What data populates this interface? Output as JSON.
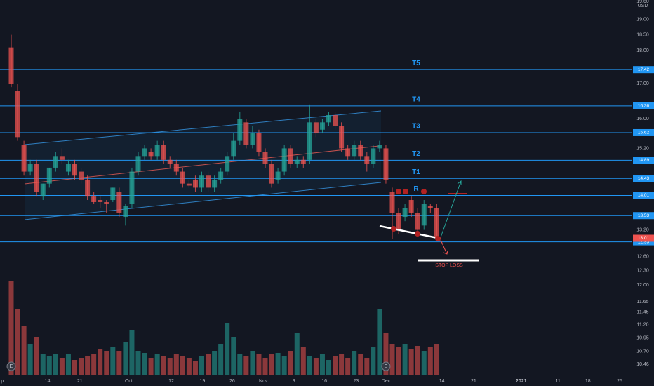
{
  "chart_data": {
    "type": "candlestick",
    "currency": "USD",
    "log_scale": true,
    "ylim": [
      10.26,
      19.65
    ],
    "yticks": [
      {
        "value": 19.6,
        "label": "19.60"
      },
      {
        "value": 19,
        "label": "19.00"
      },
      {
        "value": 18.5,
        "label": "18.50"
      },
      {
        "value": 18,
        "label": "18.00"
      },
      {
        "value": 17,
        "label": "17.00"
      },
      {
        "value": 16,
        "label": "16.00"
      },
      {
        "value": 15.2,
        "label": "15.20"
      },
      {
        "value": 13.2,
        "label": "13.20"
      },
      {
        "value": 12.6,
        "label": "12.60"
      },
      {
        "value": 12.3,
        "label": "12.30"
      },
      {
        "value": 12,
        "label": "12.00"
      },
      {
        "value": 11.65,
        "label": "11.65"
      },
      {
        "value": 11.45,
        "label": "11.45"
      },
      {
        "value": 11.2,
        "label": "11.20"
      },
      {
        "value": 10.95,
        "label": "10.95"
      },
      {
        "value": 10.7,
        "label": "10.70"
      },
      {
        "value": 10.46,
        "label": "10.46"
      }
    ],
    "xticks": [
      {
        "value": -1.4,
        "label": "p"
      },
      {
        "value": 5.7,
        "label": "14"
      },
      {
        "value": 10.8,
        "label": "21"
      },
      {
        "value": 18.5,
        "label": "Oct"
      },
      {
        "value": 25.2,
        "label": "12"
      },
      {
        "value": 30.1,
        "label": "19"
      },
      {
        "value": 34.8,
        "label": "26"
      },
      {
        "value": 39.7,
        "label": "Nov"
      },
      {
        "value": 44.5,
        "label": "9"
      },
      {
        "value": 49.3,
        "label": "16"
      },
      {
        "value": 54.3,
        "label": "23"
      },
      {
        "value": 59,
        "label": "Dec"
      },
      {
        "value": 67.8,
        "label": "14"
      },
      {
        "value": 72.8,
        "label": "21"
      },
      {
        "value": 80.3,
        "label": "2021"
      },
      {
        "value": 86.1,
        "label": "11"
      },
      {
        "value": 90.8,
        "label": "18"
      },
      {
        "value": 95.8,
        "label": "25"
      }
    ],
    "up_color": "#26a69a",
    "down_color": "#ef5350",
    "level_color": "#2196f3",
    "ohlc": [
      [
        18.1,
        18.5,
        16.9,
        17.0
      ],
      [
        16.8,
        17.0,
        15.4,
        15.5
      ],
      [
        15.3,
        15.4,
        14.5,
        14.6
      ],
      [
        14.6,
        14.9,
        14.5,
        14.8
      ],
      [
        14.8,
        14.9,
        14.0,
        14.1
      ],
      [
        14.0,
        14.3,
        13.9,
        14.3
      ],
      [
        14.3,
        14.7,
        14.2,
        14.7
      ],
      [
        14.7,
        15.1,
        14.6,
        15.0
      ],
      [
        15.0,
        15.2,
        14.8,
        14.9
      ],
      [
        14.6,
        14.9,
        14.5,
        14.8
      ],
      [
        14.8,
        14.9,
        14.4,
        14.5
      ],
      [
        14.6,
        14.7,
        14.3,
        14.4
      ],
      [
        14.4,
        14.5,
        13.9,
        14.0
      ],
      [
        14.0,
        14.1,
        13.8,
        13.85
      ],
      [
        13.9,
        14.0,
        13.7,
        13.85
      ],
      [
        13.85,
        13.9,
        13.6,
        13.8
      ],
      [
        13.9,
        14.2,
        13.85,
        14.2
      ],
      [
        14.1,
        14.2,
        13.5,
        13.6
      ],
      [
        13.5,
        13.8,
        13.3,
        13.75
      ],
      [
        13.8,
        14.7,
        13.7,
        14.6
      ],
      [
        14.6,
        15.1,
        14.5,
        15.0
      ],
      [
        15.0,
        15.3,
        14.9,
        15.2
      ],
      [
        15.1,
        15.2,
        14.9,
        15.0
      ],
      [
        15.0,
        15.4,
        14.9,
        15.3
      ],
      [
        15.3,
        15.4,
        14.8,
        14.9
      ],
      [
        14.9,
        15.0,
        14.7,
        14.8
      ],
      [
        14.8,
        14.9,
        14.5,
        14.6
      ],
      [
        14.6,
        14.7,
        14.2,
        14.3
      ],
      [
        14.3,
        14.4,
        14.2,
        14.25
      ],
      [
        14.4,
        14.5,
        14.1,
        14.2
      ],
      [
        14.2,
        14.6,
        14.1,
        14.5
      ],
      [
        14.5,
        14.6,
        14.1,
        14.2
      ],
      [
        14.2,
        14.5,
        14.1,
        14.4
      ],
      [
        14.4,
        14.7,
        14.3,
        14.6
      ],
      [
        14.6,
        15.1,
        14.5,
        15.0
      ],
      [
        15.0,
        15.6,
        14.9,
        15.4
      ],
      [
        15.4,
        16.2,
        15.3,
        16.0
      ],
      [
        15.9,
        16.0,
        15.2,
        15.3
      ],
      [
        15.3,
        15.8,
        15.2,
        15.6
      ],
      [
        15.6,
        15.7,
        15.0,
        15.1
      ],
      [
        15.1,
        15.2,
        14.7,
        14.8
      ],
      [
        14.8,
        14.9,
        14.2,
        14.3
      ],
      [
        14.4,
        14.7,
        14.3,
        14.6
      ],
      [
        14.6,
        15.3,
        14.5,
        15.2
      ],
      [
        15.2,
        15.3,
        14.7,
        14.8
      ],
      [
        14.8,
        15.0,
        14.7,
        14.9
      ],
      [
        14.9,
        15.0,
        14.7,
        14.8
      ],
      [
        14.9,
        16.4,
        14.8,
        15.9
      ],
      [
        15.9,
        16.0,
        15.5,
        15.6
      ],
      [
        15.7,
        16.0,
        15.6,
        15.9
      ],
      [
        15.9,
        16.2,
        15.8,
        16.1
      ],
      [
        16.1,
        16.2,
        15.7,
        15.8
      ],
      [
        15.8,
        15.9,
        15.1,
        15.2
      ],
      [
        15.2,
        15.3,
        14.9,
        15.0
      ],
      [
        15.0,
        15.4,
        14.9,
        15.3
      ],
      [
        15.3,
        15.4,
        14.9,
        15.0
      ],
      [
        15.0,
        15.1,
        14.6,
        14.8
      ],
      [
        14.8,
        15.3,
        14.7,
        15.2
      ],
      [
        15.2,
        15.4,
        15.1,
        15.3
      ],
      [
        15.2,
        15.3,
        14.3,
        14.4
      ],
      [
        14.1,
        14.2,
        13.0,
        13.6
      ],
      [
        13.6,
        13.7,
        13.1,
        13.2
      ],
      [
        13.5,
        13.8,
        13.4,
        13.7
      ],
      [
        13.9,
        14.0,
        13.5,
        13.6
      ],
      [
        13.6,
        13.7,
        13.1,
        13.2
      ],
      [
        13.3,
        13.9,
        13.2,
        13.8
      ],
      [
        13.75,
        13.8,
        13.6,
        13.7
      ],
      [
        13.7,
        13.8,
        12.95,
        13.01
      ]
    ],
    "volume": [
      135,
      95,
      70,
      45,
      55,
      30,
      28,
      30,
      25,
      30,
      22,
      25,
      28,
      30,
      38,
      35,
      40,
      35,
      48,
      65,
      35,
      32,
      25,
      30,
      28,
      25,
      30,
      28,
      25,
      20,
      28,
      30,
      35,
      45,
      75,
      55,
      30,
      28,
      35,
      30,
      25,
      30,
      32,
      28,
      35,
      60,
      40,
      28,
      25,
      30,
      22,
      28,
      30,
      25,
      35,
      30,
      25,
      40,
      95,
      60,
      45,
      40,
      45,
      38,
      42,
      35,
      40,
      45
    ],
    "levels": [
      {
        "name": "T5",
        "value": 17.42
      },
      {
        "name": "T4",
        "value": 16.36
      },
      {
        "name": "T3",
        "value": 15.62
      },
      {
        "name": "T2",
        "value": 14.89
      },
      {
        "name": "T1",
        "value": 14.43
      },
      {
        "name": "R",
        "value": 14.01
      },
      {
        "value": 13.53
      },
      {
        "value": 12.93
      }
    ],
    "last_price": 13.01,
    "earnings_markers": [
      {
        "label": "E",
        "session": 0
      },
      {
        "label": "E",
        "session": 59
      }
    ],
    "annotations": {
      "stop_loss": "STOP LOSS"
    }
  }
}
